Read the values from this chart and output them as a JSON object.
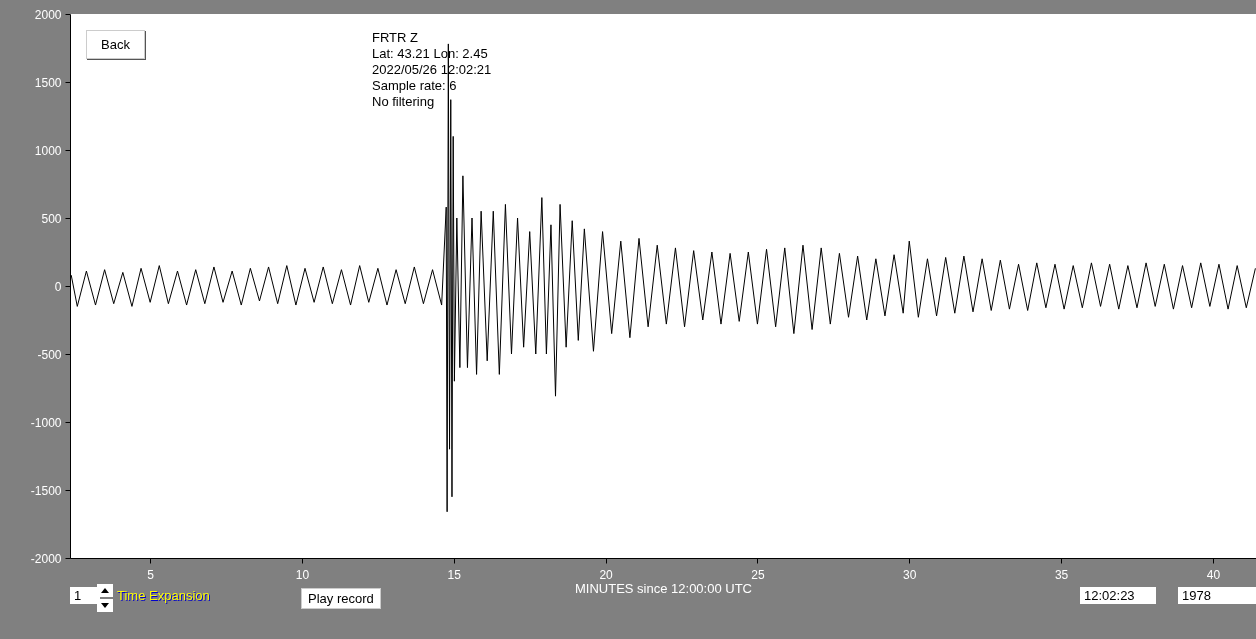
{
  "chart_data": {
    "type": "line",
    "xlabel": "MINUTES since 12:00:00 UTC",
    "annotations": [
      "FRTR  Z",
      "Lat: 43.21 Lon: 2.45",
      "2022/05/26 12:02:21",
      "Sample rate: 6",
      "No filtering",
      "Back",
      "1",
      "Time Expansion",
      "Play record",
      "12:02:23",
      "1978"
    ],
    "x": [
      2.4,
      2.6,
      2.9,
      3.2,
      3.5,
      3.8,
      4.1,
      4.4,
      4.7,
      5.0,
      5.3,
      5.6,
      5.9,
      6.2,
      6.5,
      6.8,
      7.1,
      7.4,
      7.7,
      8.0,
      8.3,
      8.6,
      8.9,
      9.2,
      9.5,
      9.8,
      10.1,
      10.4,
      10.7,
      11.0,
      11.3,
      11.6,
      11.9,
      12.2,
      12.5,
      12.8,
      13.1,
      13.4,
      13.7,
      14.0,
      14.3,
      14.6,
      14.75,
      14.78,
      14.82,
      14.86,
      14.9,
      14.94,
      14.98,
      15.02,
      15.1,
      15.2,
      15.3,
      15.45,
      15.6,
      15.75,
      15.9,
      16.1,
      16.3,
      16.5,
      16.7,
      16.9,
      17.1,
      17.3,
      17.5,
      17.7,
      17.9,
      18.05,
      18.2,
      18.35,
      18.5,
      18.7,
      18.9,
      19.1,
      19.3,
      19.6,
      19.9,
      20.2,
      20.5,
      20.8,
      21.1,
      21.4,
      21.7,
      22.0,
      22.3,
      22.6,
      22.9,
      23.2,
      23.5,
      23.8,
      24.1,
      24.4,
      24.7,
      25.0,
      25.3,
      25.6,
      25.9,
      26.2,
      26.5,
      26.8,
      27.1,
      27.4,
      27.7,
      28.0,
      28.3,
      28.6,
      28.9,
      29.2,
      29.5,
      29.8,
      30.0,
      30.3,
      30.6,
      30.9,
      31.2,
      31.5,
      31.8,
      32.1,
      32.4,
      32.7,
      33.0,
      33.3,
      33.6,
      33.9,
      34.2,
      34.5,
      34.8,
      35.1,
      35.4,
      35.7,
      36.0,
      36.3,
      36.6,
      36.9,
      37.2,
      37.5,
      37.8,
      38.1,
      38.4,
      38.7,
      39.0,
      39.3,
      39.6,
      39.9,
      40.2,
      40.5,
      40.8,
      41.1,
      41.4
    ],
    "series": [
      {
        "color": "#000000",
        "values": [
          80,
          -150,
          110,
          -140,
          120,
          -130,
          100,
          -150,
          130,
          -120,
          150,
          -130,
          110,
          -140,
          120,
          -130,
          140,
          -120,
          110,
          -140,
          130,
          -110,
          140,
          -130,
          150,
          -140,
          130,
          -120,
          140,
          -130,
          120,
          -140,
          150,
          -120,
          130,
          -140,
          120,
          -130,
          140,
          -130,
          120,
          -140,
          580,
          -1660,
          1780,
          -1200,
          1370,
          -1550,
          1100,
          -700,
          500,
          -600,
          810,
          -600,
          500,
          -650,
          550,
          -550,
          550,
          -650,
          600,
          -500,
          500,
          -450,
          400,
          -500,
          650,
          -500,
          450,
          -810,
          600,
          -450,
          480,
          -400,
          420,
          -480,
          400,
          -350,
          330,
          -380,
          350,
          -300,
          300,
          -280,
          280,
          -300,
          260,
          -250,
          250,
          -280,
          240,
          -260,
          250,
          -280,
          270,
          -300,
          280,
          -350,
          300,
          -320,
          280,
          -280,
          240,
          -230,
          220,
          -250,
          200,
          -220,
          230,
          -200,
          330,
          -230,
          200,
          -220,
          210,
          -200,
          220,
          -190,
          200,
          -180,
          190,
          -170,
          160,
          -180,
          170,
          -160,
          160,
          -170,
          150,
          -160,
          170,
          -150,
          160,
          -170,
          150,
          -160,
          170,
          -150,
          160,
          -170,
          150,
          -160,
          170,
          -150,
          160,
          -170,
          150,
          -160,
          130
        ]
      }
    ],
    "xlim": [
      2.36,
      41.42
    ],
    "xticks": [
      5,
      10,
      15,
      20,
      25,
      30,
      35,
      40
    ],
    "ylim": [
      -2000,
      2000
    ],
    "yticks": [
      -2000,
      -1500,
      -1000,
      -500,
      0,
      500,
      1000,
      1500,
      2000
    ],
    "grid": false,
    "marker": "none",
    "line_style": "solid"
  }
}
